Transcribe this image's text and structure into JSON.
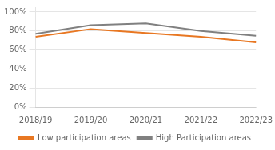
{
  "chart_data": {
    "type": "line",
    "categories": [
      "2018/19",
      "2019/20",
      "2020/21",
      "2021/22",
      "2022/23"
    ],
    "series": [
      {
        "name": "Low participation areas",
        "color": "#E87722",
        "values": [
          0.74,
          0.82,
          0.78,
          0.74,
          0.68
        ]
      },
      {
        "name": "High Participation areas",
        "color": "#808080",
        "values": [
          0.77,
          0.86,
          0.88,
          0.8,
          0.75
        ]
      }
    ],
    "ylim": [
      0.0,
      1.05
    ],
    "yticks": [
      {
        "value": 0.0,
        "label": "0%"
      },
      {
        "value": 0.2,
        "label": "20%"
      },
      {
        "value": 0.4,
        "label": "40%"
      },
      {
        "value": 0.6,
        "label": "60%"
      },
      {
        "value": 0.8,
        "label": "80%"
      },
      {
        "value": 1.0,
        "label": "100%"
      }
    ],
    "grid": true,
    "legend": "bottom"
  }
}
